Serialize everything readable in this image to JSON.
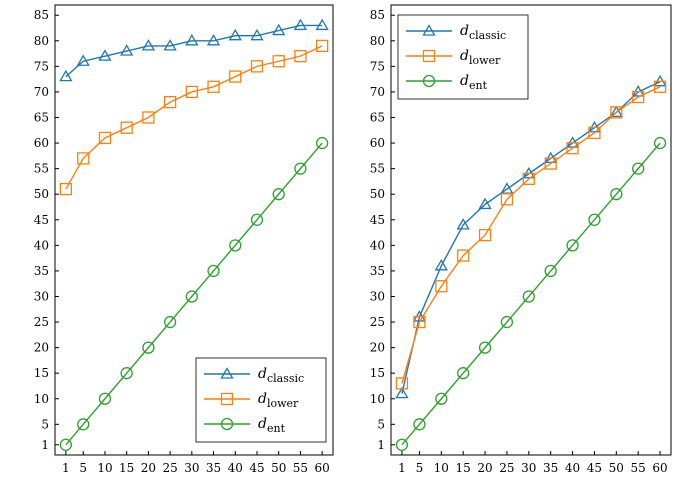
{
  "chart_data": [
    {
      "type": "line",
      "x": [
        1,
        5,
        10,
        15,
        20,
        25,
        30,
        35,
        40,
        45,
        50,
        55,
        60
      ],
      "x_ticks": [
        "1",
        "5",
        "10",
        "15",
        "20",
        "25",
        "30",
        "35",
        "40",
        "45",
        "50",
        "55",
        "60"
      ],
      "y_ticks": [
        "1",
        "5",
        "10",
        "15",
        "20",
        "25",
        "30",
        "35",
        "40",
        "45",
        "50",
        "55",
        "60",
        "65",
        "70",
        "75",
        "80",
        "85"
      ],
      "xlim": [
        -1.5,
        62.5
      ],
      "ylim": [
        -1,
        87
      ],
      "grid": false,
      "legend_position": "bottom-right",
      "series": [
        {
          "name": "classic",
          "base": "d",
          "marker": "triangle",
          "color": "#1f77b4",
          "values": [
            73,
            76,
            77,
            78,
            79,
            79,
            80,
            80,
            81,
            81,
            82,
            83,
            83
          ]
        },
        {
          "name": "lower",
          "base": "d",
          "marker": "square",
          "color": "#ff7f0e",
          "values": [
            51,
            57,
            61,
            63,
            65,
            68,
            70,
            71,
            73,
            75,
            76,
            77,
            79
          ]
        },
        {
          "name": "ent",
          "base": "d",
          "marker": "circle",
          "color": "#2ca02c",
          "values": [
            1,
            5,
            10,
            15,
            20,
            25,
            30,
            35,
            40,
            45,
            50,
            55,
            60
          ]
        }
      ]
    },
    {
      "type": "line",
      "x": [
        1,
        5,
        10,
        15,
        20,
        25,
        30,
        35,
        40,
        45,
        50,
        55,
        60
      ],
      "x_ticks": [
        "1",
        "5",
        "10",
        "15",
        "20",
        "25",
        "30",
        "35",
        "40",
        "45",
        "50",
        "55",
        "60"
      ],
      "y_ticks": [
        "1",
        "5",
        "10",
        "15",
        "20",
        "25",
        "30",
        "35",
        "40",
        "45",
        "50",
        "55",
        "60",
        "65",
        "70",
        "75",
        "80",
        "85"
      ],
      "xlim": [
        -1.5,
        62.5
      ],
      "ylim": [
        -1,
        87
      ],
      "grid": false,
      "legend_position": "top-left",
      "series": [
        {
          "name": "classic",
          "base": "d",
          "marker": "triangle",
          "color": "#1f77b4",
          "values": [
            11,
            26,
            36,
            44,
            48,
            51,
            54,
            57,
            60,
            63,
            66,
            70,
            72
          ]
        },
        {
          "name": "lower",
          "base": "d",
          "marker": "square",
          "color": "#ff7f0e",
          "values": [
            13,
            25,
            32,
            38,
            42,
            49,
            53,
            56,
            59,
            62,
            66,
            69,
            71
          ]
        },
        {
          "name": "ent",
          "base": "d",
          "marker": "circle",
          "color": "#2ca02c",
          "values": [
            1,
            5,
            10,
            15,
            20,
            25,
            30,
            35,
            40,
            45,
            50,
            55,
            60
          ]
        }
      ]
    }
  ]
}
